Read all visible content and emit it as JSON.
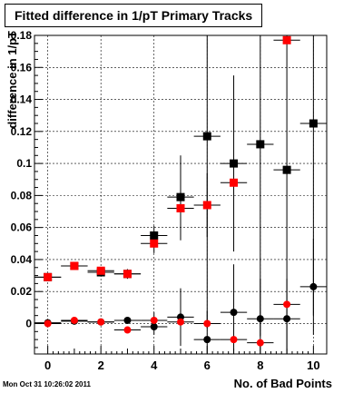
{
  "title": "Fitted difference in 1/pT Primary Tracks",
  "timestamp": "Mon Oct 31 10:26:02 2011",
  "chart_data": {
    "type": "scatter",
    "title": "Fitted difference in 1/pT Primary Tracks",
    "xlabel": "No. of Bad Points",
    "ylabel": "difference in 1/pT",
    "xlim": [
      -0.5,
      10.5
    ],
    "ylim": [
      -0.019,
      0.18
    ],
    "x_ticks": [
      0,
      2,
      4,
      6,
      8,
      10
    ],
    "y_ticks": [
      0,
      0.02,
      0.04,
      0.06,
      0.08,
      0.1,
      0.12,
      0.14,
      0.16,
      0.18
    ],
    "y_tick_labels": [
      "0",
      "0.02",
      "0.04",
      "0.06",
      "0.08",
      "0.1",
      "0.12",
      "0.14",
      "0.16",
      "0.18"
    ],
    "grid": true,
    "series": [
      {
        "marker": "square",
        "color": "#000000",
        "points": [
          {
            "x": 0,
            "y": 0.029,
            "err": 0.001
          },
          {
            "x": 1,
            "y": 0.036,
            "err": 0.001
          },
          {
            "x": 2,
            "y": 0.032,
            "err": 0.002
          },
          {
            "x": 3,
            "y": 0.031,
            "err": 0.003
          },
          {
            "x": 4,
            "y": 0.055,
            "err": 0.006
          },
          {
            "x": 5,
            "y": 0.079,
            "err": 0.026
          },
          {
            "x": 6,
            "y": 0.117,
            "err": 0.12
          },
          {
            "x": 7,
            "y": 0.1,
            "err": 0.055
          },
          {
            "x": 8,
            "y": 0.112,
            "err": 0.12
          },
          {
            "x": 9,
            "y": 0.096,
            "err": 0.12
          },
          {
            "x": 10,
            "y": 0.125,
            "err": 0.12
          }
        ]
      },
      {
        "marker": "square",
        "color": "#ff0000",
        "points": [
          {
            "x": 0,
            "y": 0.029,
            "err": 0.001
          },
          {
            "x": 1,
            "y": 0.036,
            "err": 0.001
          },
          {
            "x": 2,
            "y": 0.033,
            "err": 0.002
          },
          {
            "x": 3,
            "y": 0.031,
            "err": 0.003
          },
          {
            "x": 4,
            "y": 0.05,
            "err": 0.006
          },
          {
            "x": 5,
            "y": 0.072,
            "err": 0.02
          },
          {
            "x": 6,
            "y": 0.074,
            "err": 0.02
          },
          {
            "x": 7,
            "y": 0.088,
            "err": 0.0
          },
          {
            "x": 8,
            "y": null,
            "err": 0.0
          },
          {
            "x": 9,
            "y": 0.177,
            "err": 0.0
          },
          {
            "x": 10,
            "y": null,
            "err": 0.0
          }
        ]
      },
      {
        "marker": "circle",
        "color": "#000000",
        "points": [
          {
            "x": 0,
            "y": 0.0005,
            "err": 0.0005
          },
          {
            "x": 1,
            "y": 0.0015,
            "err": 0.0005
          },
          {
            "x": 2,
            "y": 0.001,
            "err": 0.001
          },
          {
            "x": 3,
            "y": 0.002,
            "err": 0.001
          },
          {
            "x": 4,
            "y": -0.002,
            "err": 0.005
          },
          {
            "x": 5,
            "y": 0.004,
            "err": 0.018
          },
          {
            "x": 6,
            "y": -0.01,
            "err": 0.018
          },
          {
            "x": 7,
            "y": 0.007,
            "err": 0.03
          },
          {
            "x": 8,
            "y": 0.003,
            "err": 0.025
          },
          {
            "x": 9,
            "y": 0.003,
            "err": 0.025
          },
          {
            "x": 10,
            "y": 0.023,
            "err": 0.03
          }
        ]
      },
      {
        "marker": "circle",
        "color": "#ff0000",
        "points": [
          {
            "x": 0,
            "y": 0.0,
            "err": 0.0005
          },
          {
            "x": 1,
            "y": 0.002,
            "err": 0.0005
          },
          {
            "x": 2,
            "y": 0.001,
            "err": 0.001
          },
          {
            "x": 3,
            "y": -0.004,
            "err": 0.001
          },
          {
            "x": 4,
            "y": 0.002,
            "err": 0.005
          },
          {
            "x": 5,
            "y": 0.001,
            "err": 0.0
          },
          {
            "x": 6,
            "y": 0.0,
            "err": 0.0
          },
          {
            "x": 7,
            "y": -0.01,
            "err": 0.0
          },
          {
            "x": 8,
            "y": -0.012,
            "err": 0.0
          },
          {
            "x": 9,
            "y": 0.012,
            "err": 0.0
          },
          {
            "x": 10,
            "y": null,
            "err": 0.0
          }
        ]
      }
    ]
  }
}
